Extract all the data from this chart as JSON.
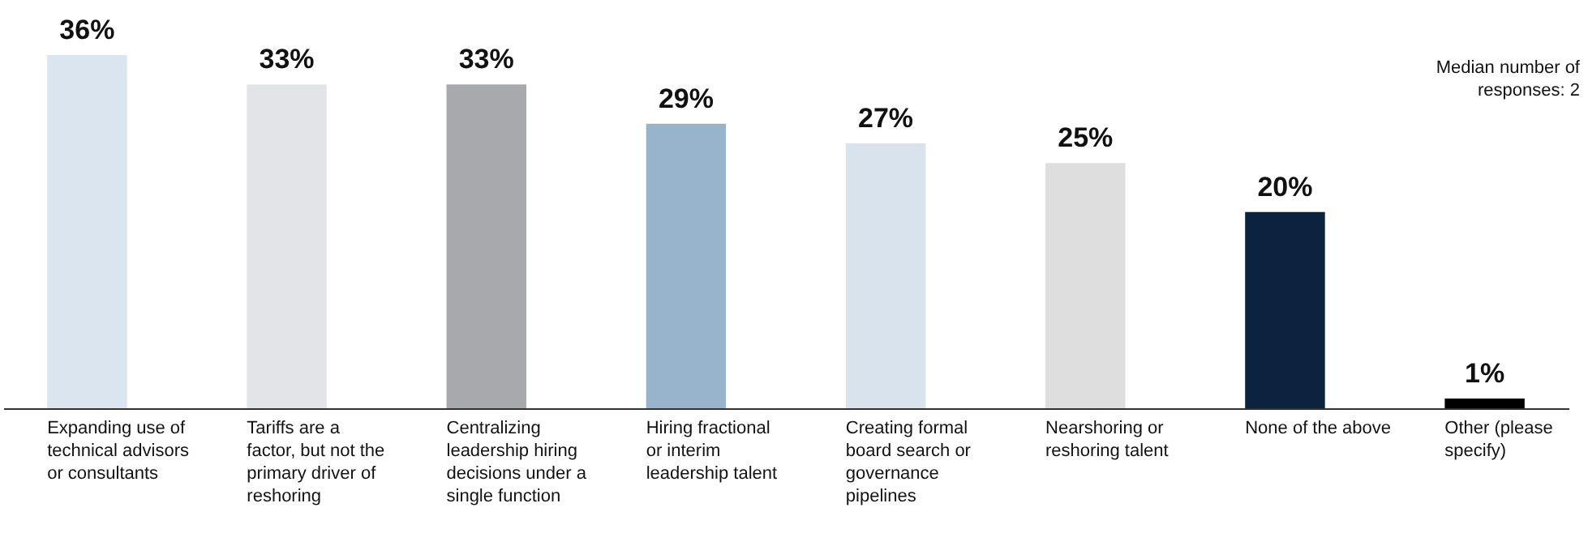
{
  "chart_data": {
    "type": "bar",
    "categories": [
      "Expanding use of technical advisors or consultants",
      "Tariffs are a factor, but not the primary driver of reshoring",
      "Centralizing leadership hiring decisions under a single function",
      "Hiring fractional or interim leadership talent",
      "Creating formal board search or governance pipelines",
      "Nearshoring or reshoring talent",
      "None of the above",
      "Other (please specify)"
    ],
    "values": [
      36,
      33,
      33,
      29,
      27,
      25,
      20,
      1
    ],
    "colors": [
      "#dbe5ef",
      "#e3e4e8",
      "#a7a9ac",
      "#97b4cc",
      "#d8e3ee",
      "#dededf",
      "#0c2340",
      "#000000"
    ],
    "value_labels": [
      "36%",
      "33%",
      "33%",
      "29%",
      "27%",
      "25%",
      "20%",
      "1%"
    ],
    "annotations": [
      "Median number of responses: 2"
    ],
    "grid": false
  }
}
